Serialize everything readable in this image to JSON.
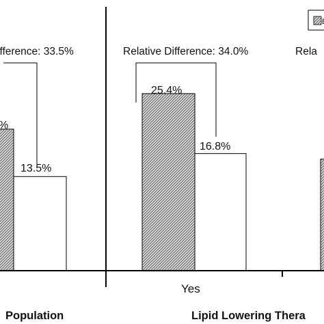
{
  "chart_data": {
    "type": "bar",
    "groups": [
      {
        "label": "Population",
        "annotation": "ifference: 33.5%",
        "bars": [
          {
            "value": 20.3,
            "label": "%"
          },
          {
            "value": 13.5,
            "label": "13.5%"
          }
        ]
      },
      {
        "label": "Lipid Lowering Thera",
        "category": "Yes",
        "annotation": "Relative Difference: 34.0%",
        "bars": [
          {
            "value": 25.4,
            "label": "25.4%"
          },
          {
            "value": 16.8,
            "label": "16.8%"
          }
        ]
      },
      {
        "annotation": "Rela",
        "bars": [
          {
            "value": 16.0,
            "label": ""
          }
        ]
      }
    ],
    "series": [
      {
        "name": "E",
        "pattern": "hatched",
        "color": "#cccccc"
      },
      {
        "name": "",
        "pattern": "solid",
        "color": "#ffffff"
      }
    ],
    "ylim": [
      0,
      30
    ],
    "grid": false,
    "legend": "top-right"
  }
}
